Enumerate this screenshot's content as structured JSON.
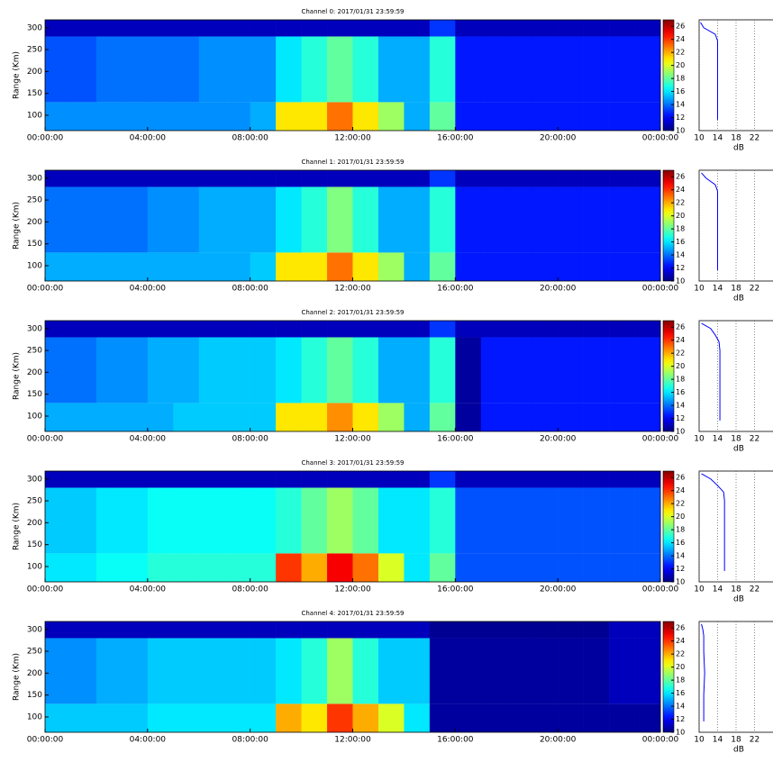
{
  "chart_data": [
    {
      "type": "heatmap",
      "title": "Channel 0: 2017/01/31 23:59:59",
      "ylabel": "Range (Km)",
      "xlim": [
        0,
        24
      ],
      "xticks": [
        {
          "value": 0,
          "label": "00:00:00"
        },
        {
          "value": 4,
          "label": "04:00:00"
        },
        {
          "value": 8,
          "label": "08:00:00"
        },
        {
          "value": 12,
          "label": "12:00:00"
        },
        {
          "value": 16,
          "label": "16:00:00"
        },
        {
          "value": 20,
          "label": "20:00:00"
        },
        {
          "value": 24,
          "label": "00:00:00"
        }
      ],
      "ylim": [
        65,
        318
      ],
      "yticks": [
        100,
        150,
        200,
        250,
        300
      ],
      "x_edges": [
        0,
        1,
        2,
        3,
        4,
        5,
        6,
        7,
        8,
        9,
        10,
        11,
        12,
        13,
        14,
        15,
        16,
        17,
        18,
        19,
        20,
        21,
        22,
        23,
        24
      ],
      "y_edges": [
        65,
        130,
        280,
        318
      ],
      "z": [
        [
          14.5,
          14.5,
          14.5,
          14.5,
          14.5,
          14.5,
          14.5,
          14.5,
          15,
          21,
          21,
          23,
          21,
          19,
          15,
          18,
          12.5,
          12.5,
          12.5,
          12.5,
          12.5,
          12.5,
          12.5,
          12.5
        ],
        [
          13.5,
          13.5,
          14,
          14,
          14,
          14,
          14.5,
          14.5,
          14.5,
          16,
          17,
          18,
          17,
          15,
          15,
          17,
          12.5,
          12.5,
          12.5,
          12.5,
          12.5,
          12.5,
          12.5,
          12.5
        ],
        [
          11,
          11,
          11,
          11,
          11,
          11,
          11,
          11,
          11,
          11,
          11,
          11,
          11,
          11,
          11,
          13,
          11,
          11,
          11,
          11,
          11,
          11,
          11,
          11
        ]
      ],
      "colormap": "jet",
      "clim": [
        10,
        27
      ],
      "cticks": [
        10,
        12,
        14,
        16,
        18,
        20,
        22,
        24,
        26
      ],
      "profile": {
        "xlabel": "dB",
        "xlim": [
          10,
          26
        ],
        "xticks": [
          10,
          14,
          18,
          22
        ],
        "grid": true,
        "color": "#0000ff",
        "range": [
          90,
          150,
          200,
          250,
          270,
          285,
          300,
          312
        ],
        "values": [
          14,
          14,
          14,
          14,
          14,
          13.5,
          11,
          10.3
        ]
      }
    },
    {
      "type": "heatmap",
      "title": "Channel 1: 2017/01/31 23:59:59",
      "ylabel": "Range (Km)",
      "xlim": [
        0,
        24
      ],
      "xticks": [
        {
          "value": 0,
          "label": "00:00:00"
        },
        {
          "value": 4,
          "label": "04:00:00"
        },
        {
          "value": 8,
          "label": "08:00:00"
        },
        {
          "value": 12,
          "label": "12:00:00"
        },
        {
          "value": 16,
          "label": "16:00:00"
        },
        {
          "value": 20,
          "label": "20:00:00"
        },
        {
          "value": 24,
          "label": "00:00:00"
        }
      ],
      "ylim": [
        65,
        318
      ],
      "yticks": [
        100,
        150,
        200,
        250,
        300
      ],
      "x_edges": [
        0,
        1,
        2,
        3,
        4,
        5,
        6,
        7,
        8,
        9,
        10,
        11,
        12,
        13,
        14,
        15,
        16,
        17,
        18,
        19,
        20,
        21,
        22,
        23,
        24
      ],
      "y_edges": [
        65,
        130,
        280,
        318
      ],
      "z": [
        [
          15,
          15,
          15,
          15,
          15,
          15,
          15,
          15,
          15.5,
          21,
          21,
          23,
          21,
          19,
          15,
          18,
          12.5,
          12.5,
          12.5,
          12.5,
          12.5,
          12.5,
          12.5,
          12.5
        ],
        [
          14,
          14,
          14,
          14,
          14.5,
          14.5,
          15,
          15,
          15,
          16,
          17,
          18.5,
          17,
          15,
          15,
          17,
          12.5,
          12.5,
          12.5,
          12.5,
          12.5,
          12.5,
          12.5,
          12.5
        ],
        [
          11,
          11,
          11,
          11,
          11,
          11,
          11,
          11,
          11,
          11,
          11,
          11,
          11,
          11,
          11,
          13,
          11,
          11,
          11,
          11,
          11,
          11,
          11,
          11
        ]
      ],
      "colormap": "jet",
      "clim": [
        10,
        27
      ],
      "cticks": [
        10,
        12,
        14,
        16,
        18,
        20,
        22,
        24,
        26
      ],
      "profile": {
        "xlabel": "dB",
        "xlim": [
          10,
          26
        ],
        "xticks": [
          10,
          14,
          18,
          22
        ],
        "grid": true,
        "color": "#0000ff",
        "range": [
          90,
          150,
          200,
          250,
          270,
          285,
          300,
          312
        ],
        "values": [
          14,
          14,
          14,
          14,
          14,
          13.5,
          11.5,
          10.5
        ]
      }
    },
    {
      "type": "heatmap",
      "title": "Channel 2: 2017/01/31 23:59:59",
      "ylabel": "Range (Km)",
      "xlim": [
        0,
        24
      ],
      "xticks": [
        {
          "value": 0,
          "label": "00:00:00"
        },
        {
          "value": 4,
          "label": "04:00:00"
        },
        {
          "value": 8,
          "label": "08:00:00"
        },
        {
          "value": 12,
          "label": "12:00:00"
        },
        {
          "value": 16,
          "label": "16:00:00"
        },
        {
          "value": 20,
          "label": "20:00:00"
        },
        {
          "value": 24,
          "label": "00:00:00"
        }
      ],
      "ylim": [
        65,
        318
      ],
      "yticks": [
        100,
        150,
        200,
        250,
        300
      ],
      "x_edges": [
        0,
        1,
        2,
        3,
        4,
        5,
        6,
        7,
        8,
        9,
        10,
        11,
        12,
        13,
        14,
        15,
        16,
        17,
        18,
        19,
        20,
        21,
        22,
        23,
        24
      ],
      "y_edges": [
        65,
        130,
        280,
        318
      ],
      "z": [
        [
          15,
          15,
          15,
          15,
          15,
          15.5,
          15.5,
          15.5,
          15.5,
          21,
          21,
          22.5,
          21,
          19,
          15,
          18,
          10.5,
          12.5,
          12.5,
          12.5,
          12.5,
          12.5,
          12.5,
          12.5
        ],
        [
          14,
          14,
          14.5,
          14.5,
          15,
          15,
          15.5,
          15.5,
          15.5,
          16,
          17,
          18,
          17,
          15,
          15,
          17,
          10.5,
          12.5,
          12.5,
          12.5,
          12.5,
          12.5,
          12.5,
          12.5
        ],
        [
          11,
          11,
          11,
          11,
          11,
          11,
          11,
          11,
          11,
          11,
          11,
          11,
          11,
          11,
          11,
          13,
          11,
          11,
          11,
          11,
          11,
          11,
          11,
          11
        ]
      ],
      "colormap": "jet",
      "clim": [
        10,
        27
      ],
      "cticks": [
        10,
        12,
        14,
        16,
        18,
        20,
        22,
        24,
        26
      ],
      "profile": {
        "xlabel": "dB",
        "xlim": [
          10,
          26
        ],
        "xticks": [
          10,
          14,
          18,
          22
        ],
        "grid": true,
        "color": "#0000ff",
        "range": [
          90,
          150,
          200,
          250,
          270,
          285,
          300,
          312
        ],
        "values": [
          14.5,
          14.5,
          14.5,
          14.5,
          14.3,
          13.5,
          12.5,
          10.5
        ]
      }
    },
    {
      "type": "heatmap",
      "title": "Channel 3: 2017/01/31 23:59:59",
      "ylabel": "Range (Km)",
      "xlim": [
        0,
        24
      ],
      "xticks": [
        {
          "value": 0,
          "label": "00:00:00"
        },
        {
          "value": 4,
          "label": "04:00:00"
        },
        {
          "value": 8,
          "label": "08:00:00"
        },
        {
          "value": 12,
          "label": "12:00:00"
        },
        {
          "value": 16,
          "label": "16:00:00"
        },
        {
          "value": 20,
          "label": "20:00:00"
        },
        {
          "value": 24,
          "label": "00:00:00"
        }
      ],
      "ylim": [
        65,
        318
      ],
      "yticks": [
        100,
        150,
        200,
        250,
        300
      ],
      "x_edges": [
        0,
        1,
        2,
        3,
        4,
        5,
        6,
        7,
        8,
        9,
        10,
        11,
        12,
        13,
        14,
        15,
        16,
        17,
        18,
        19,
        20,
        21,
        22,
        23,
        24
      ],
      "y_edges": [
        65,
        130,
        280,
        318
      ],
      "z": [
        [
          16,
          16,
          16.5,
          16.5,
          17,
          17,
          17,
          17,
          17,
          24,
          22,
          25,
          23,
          20,
          16,
          18,
          13.5,
          13.5,
          13.5,
          13.5,
          13.5,
          13.5,
          13.5,
          13.5
        ],
        [
          15.5,
          15.5,
          16,
          16,
          16.5,
          16.5,
          16.5,
          16.5,
          16.5,
          17,
          18,
          19,
          18,
          16,
          16,
          17,
          13.5,
          13.5,
          13.5,
          13.5,
          13.5,
          13.5,
          13.5,
          13.5
        ],
        [
          11,
          11,
          11,
          11,
          11,
          11,
          11,
          11,
          11,
          11,
          11,
          11,
          11,
          11,
          11,
          13,
          11,
          11,
          11,
          11,
          11,
          11,
          11,
          11
        ]
      ],
      "colormap": "jet",
      "clim": [
        10,
        27
      ],
      "cticks": [
        10,
        12,
        14,
        16,
        18,
        20,
        22,
        24,
        26
      ],
      "profile": {
        "xlabel": "dB",
        "xlim": [
          10,
          26
        ],
        "xticks": [
          10,
          14,
          18,
          22
        ],
        "grid": true,
        "color": "#0000ff",
        "range": [
          90,
          150,
          200,
          250,
          270,
          285,
          300,
          312
        ],
        "values": [
          15.5,
          15.5,
          15.5,
          15.5,
          15.3,
          14,
          12.5,
          10.5
        ]
      }
    },
    {
      "type": "heatmap",
      "title": "Channel 4: 2017/01/31 23:59:59",
      "ylabel": "Range (Km)",
      "xlim": [
        0,
        24
      ],
      "xticks": [
        {
          "value": 0,
          "label": "00:00:00"
        },
        {
          "value": 4,
          "label": "04:00:00"
        },
        {
          "value": 8,
          "label": "08:00:00"
        },
        {
          "value": 12,
          "label": "12:00:00"
        },
        {
          "value": 16,
          "label": "16:00:00"
        },
        {
          "value": 20,
          "label": "20:00:00"
        },
        {
          "value": 24,
          "label": "00:00:00"
        }
      ],
      "ylim": [
        65,
        318
      ],
      "yticks": [
        100,
        150,
        200,
        250,
        300
      ],
      "x_edges": [
        0,
        1,
        2,
        3,
        4,
        5,
        6,
        7,
        8,
        9,
        10,
        11,
        12,
        13,
        14,
        15,
        16,
        17,
        18,
        19,
        20,
        21,
        22,
        23,
        24
      ],
      "y_edges": [
        65,
        130,
        280,
        318
      ],
      "z": [
        [
          15.5,
          15.5,
          15.5,
          15.5,
          16,
          16,
          16,
          16,
          16,
          22,
          21,
          24,
          22,
          20,
          16,
          10.5,
          10.5,
          10.5,
          10.5,
          10.5,
          10.5,
          10.5,
          10.5,
          10.5
        ],
        [
          14.5,
          14.5,
          15,
          15,
          15.5,
          15.5,
          15.5,
          15.5,
          15.5,
          16,
          17,
          19,
          17,
          15.5,
          15.5,
          10.5,
          10.5,
          10.5,
          10.5,
          10.5,
          10.5,
          10.5,
          11,
          11
        ],
        [
          11,
          11,
          11,
          11,
          11,
          11,
          11,
          11,
          11,
          11,
          11,
          11,
          11,
          11,
          11,
          10.3,
          10.3,
          10.3,
          10.3,
          10.3,
          10.3,
          10.3,
          11,
          11
        ]
      ],
      "colormap": "jet",
      "clim": [
        10,
        27
      ],
      "cticks": [
        10,
        12,
        14,
        16,
        18,
        20,
        22,
        24,
        26
      ],
      "profile": {
        "xlabel": "dB",
        "xlim": [
          10,
          26
        ],
        "xticks": [
          10,
          14,
          18,
          22
        ],
        "grid": true,
        "color": "#0000ff",
        "range": [
          90,
          150,
          200,
          250,
          270,
          285,
          300,
          312
        ],
        "values": [
          11,
          11,
          11.2,
          11,
          11,
          11,
          10.8,
          10.5
        ]
      }
    }
  ]
}
